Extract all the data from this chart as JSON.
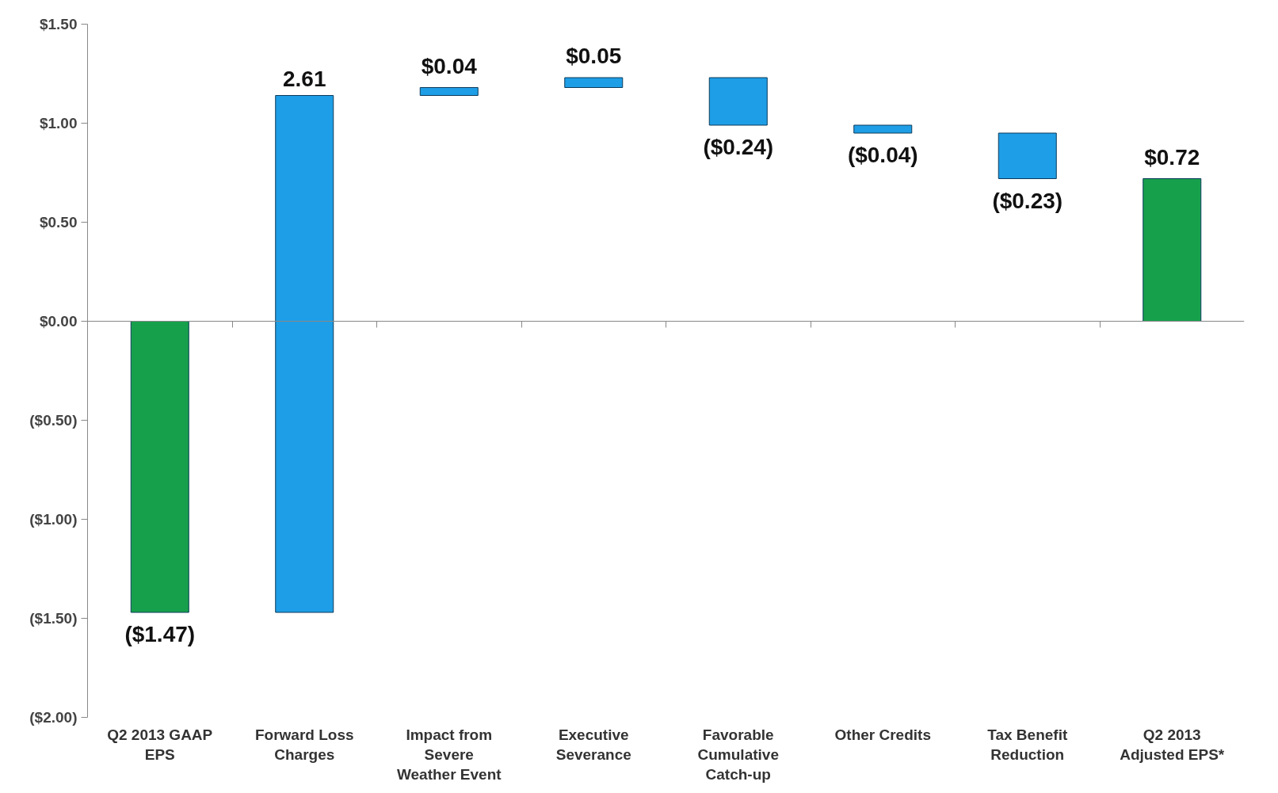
{
  "chart_data": {
    "type": "bar",
    "categories": [
      "Q2 2013 GAAP EPS",
      "Forward Loss Charges",
      "Impact from Severe Weather Event",
      "Executive Severance",
      "Favorable Cumulative Catch-up",
      "Other Credits",
      "Tax Benefit Reduction",
      "Q2 2013 Adjusted EPS*"
    ],
    "values": [
      -1.47,
      2.61,
      0.04,
      0.05,
      -0.24,
      -0.04,
      -0.23,
      0.72
    ],
    "base": [
      0,
      -1.47,
      1.14,
      1.18,
      1.23,
      0.99,
      0.95,
      0
    ],
    "colors": [
      "#17a04c",
      "#1e9ee6",
      "#1e9ee6",
      "#1e9ee6",
      "#1e9ee6",
      "#1e9ee6",
      "#1e9ee6",
      "#17a04c"
    ],
    "value_labels": [
      "($1.47)",
      "2.61",
      "$0.04",
      "$0.05",
      "($0.24)",
      "($0.04)",
      "($0.23)",
      "$0.72"
    ],
    "ylim": [
      -2,
      1.5
    ],
    "yticks": [
      {
        "value": 1.5,
        "label": "$1.50"
      },
      {
        "value": 1.0,
        "label": "$1.00"
      },
      {
        "value": 0.5,
        "label": "$0.50"
      },
      {
        "value": 0,
        "label": "$0.00"
      },
      {
        "value": -0.5,
        "label": "($0.50)"
      },
      {
        "value": -1.0,
        "label": "($1.00)"
      },
      {
        "value": -1.5,
        "label": "($1.50)"
      },
      {
        "value": -2.0,
        "label": "($2.00)"
      }
    ]
  }
}
